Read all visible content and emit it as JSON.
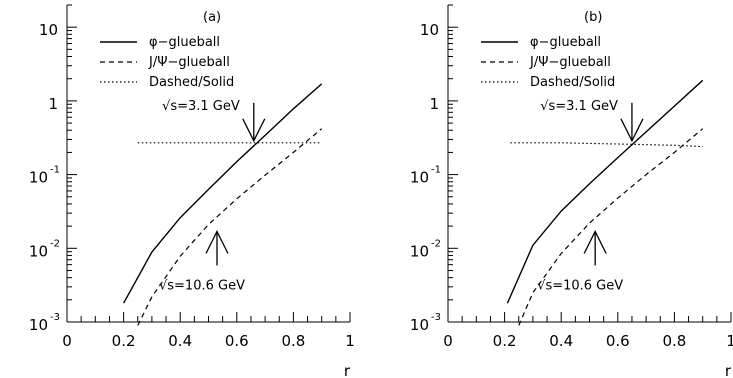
{
  "chart_data": [
    {
      "type": "line",
      "panel_label": "(a)",
      "xlabel": "r",
      "ylabel": "",
      "xlim": [
        0,
        1
      ],
      "ylim": [
        0.001,
        20
      ],
      "y_scale": "log",
      "x_ticks": [
        "0",
        "0.2",
        "0.4",
        "0.6",
        "0.8",
        "1"
      ],
      "y_ticks": [
        {
          "base": "10",
          "exp": "-3"
        },
        {
          "base": "10",
          "exp": "-2"
        },
        {
          "base": "10",
          "exp": "-1"
        },
        {
          "base": "1",
          "exp": ""
        },
        {
          "base": "10",
          "exp": ""
        }
      ],
      "legend_position": "top-left",
      "series": [
        {
          "name": "φ−glueball",
          "style": "solid",
          "x": [
            0.2,
            0.3,
            0.4,
            0.5,
            0.6,
            0.7,
            0.8,
            0.9
          ],
          "y": [
            0.0018,
            0.0089,
            0.026,
            0.063,
            0.15,
            0.34,
            0.78,
            1.7
          ]
        },
        {
          "name": "J/Ψ−glueball",
          "style": "dashed",
          "x": [
            0.25,
            0.3,
            0.4,
            0.5,
            0.6,
            0.7,
            0.8,
            0.9
          ],
          "y": [
            0.0009,
            0.0022,
            0.0078,
            0.021,
            0.047,
            0.098,
            0.2,
            0.42
          ]
        },
        {
          "name": "Dashed/Solid",
          "style": "dotted",
          "x": [
            0.25,
            0.4,
            0.6,
            0.8,
            0.9
          ],
          "y": [
            0.27,
            0.27,
            0.27,
            0.27,
            0.27
          ]
        }
      ],
      "annotations": [
        {
          "text": "√s=3.1 GeV",
          "x": 0.66,
          "y": 0.27,
          "direction": "down"
        },
        {
          "text": "√s=10.6 GeV",
          "x": 0.53,
          "y": 0.018,
          "direction": "up"
        }
      ]
    },
    {
      "type": "line",
      "panel_label": "(b)",
      "xlabel": "r",
      "ylabel": "",
      "xlim": [
        0,
        1
      ],
      "ylim": [
        0.001,
        20
      ],
      "y_scale": "log",
      "x_ticks": [
        "0",
        "0.2",
        "0.4",
        "0.6",
        "0.8",
        "1"
      ],
      "y_ticks": [
        {
          "base": "10",
          "exp": "-3"
        },
        {
          "base": "10",
          "exp": "-2"
        },
        {
          "base": "10",
          "exp": "-1"
        },
        {
          "base": "1",
          "exp": ""
        },
        {
          "base": "10",
          "exp": ""
        }
      ],
      "legend_position": "top-left",
      "series": [
        {
          "name": "φ−glueball",
          "style": "solid",
          "x": [
            0.21,
            0.3,
            0.4,
            0.5,
            0.6,
            0.7,
            0.8,
            0.9
          ],
          "y": [
            0.0018,
            0.011,
            0.032,
            0.075,
            0.17,
            0.38,
            0.85,
            1.9
          ]
        },
        {
          "name": "J/Ψ−glueball",
          "style": "dashed",
          "x": [
            0.25,
            0.3,
            0.4,
            0.5,
            0.6,
            0.7,
            0.8,
            0.9
          ],
          "y": [
            0.0009,
            0.0025,
            0.0085,
            0.022,
            0.048,
            0.1,
            0.2,
            0.42
          ]
        },
        {
          "name": "Dashed/Solid",
          "style": "dotted",
          "x": [
            0.22,
            0.4,
            0.6,
            0.8,
            0.9
          ],
          "y": [
            0.27,
            0.27,
            0.26,
            0.25,
            0.24
          ]
        }
      ],
      "annotations": [
        {
          "text": "√s=3.1 GeV",
          "x": 0.65,
          "y": 0.27,
          "direction": "down"
        },
        {
          "text": "√s=10.6 GeV",
          "x": 0.52,
          "y": 0.018,
          "direction": "up"
        }
      ]
    }
  ]
}
